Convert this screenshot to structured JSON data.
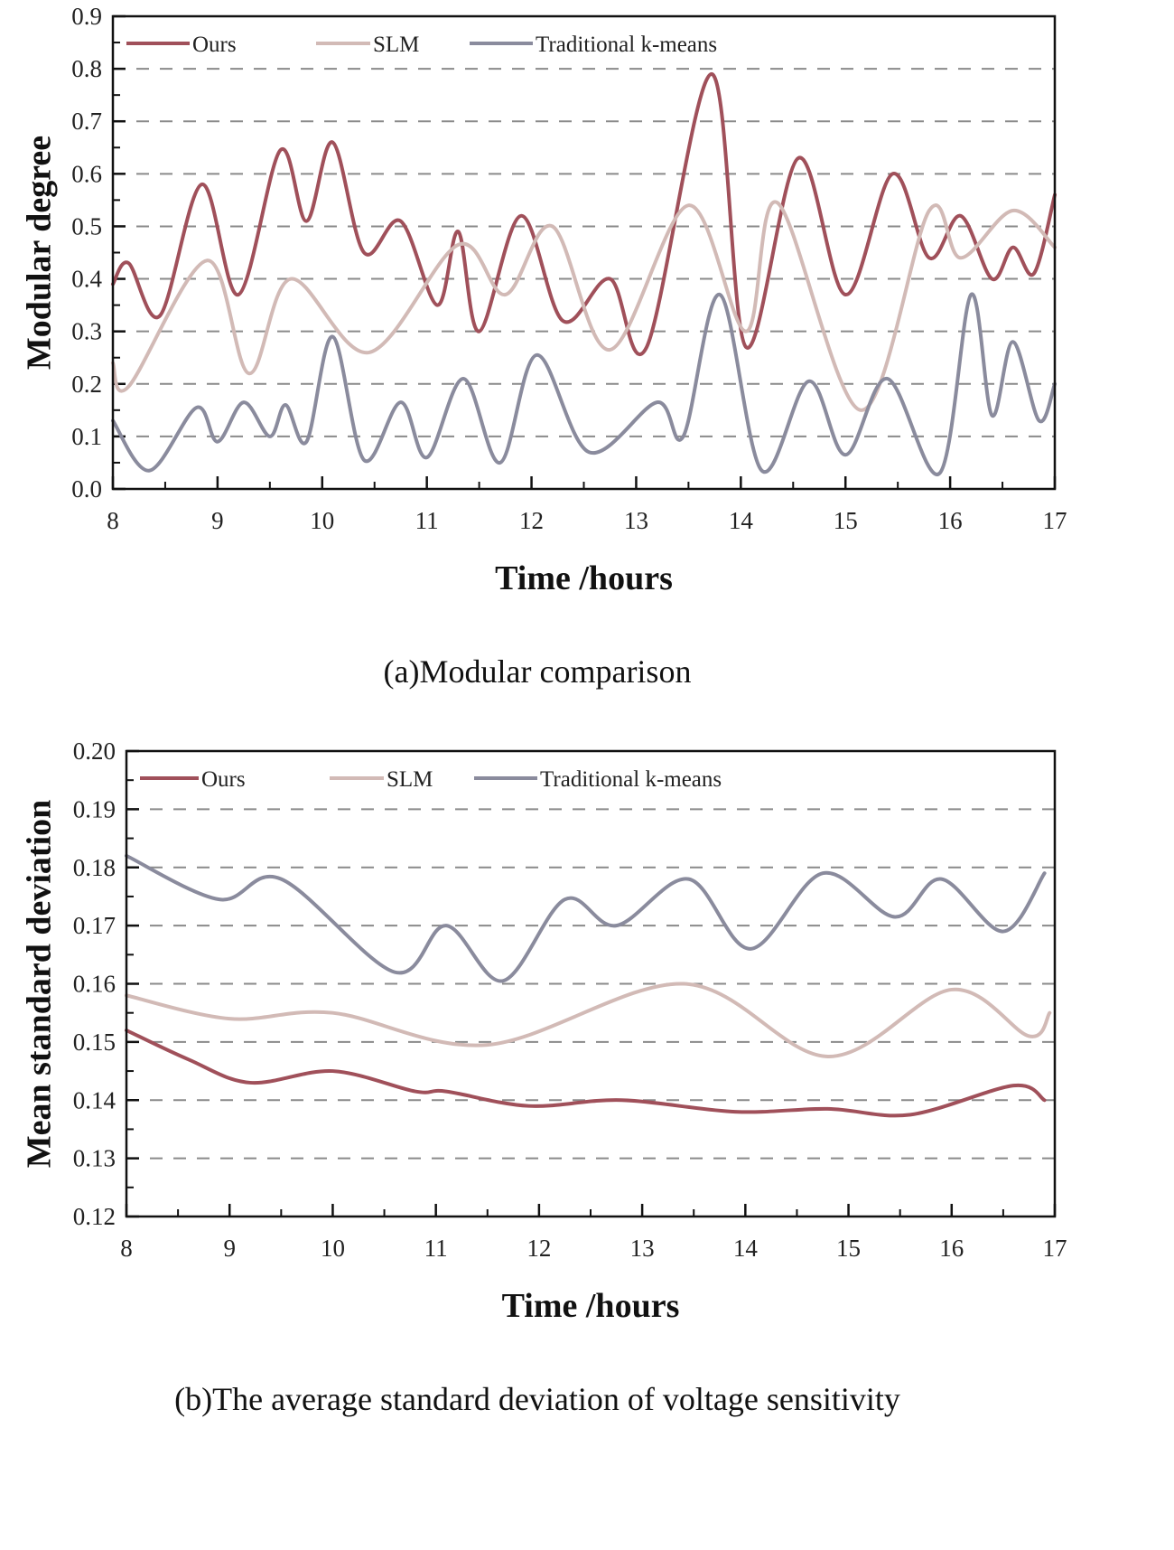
{
  "colors": {
    "ours": "#a0505a",
    "slm": "#d2bab6",
    "kmeans": "#8a8b9d"
  },
  "chart_data": [
    {
      "type": "line",
      "caption": "(a)Modular comparison",
      "xlabel": "Time /hours",
      "ylabel": "Modular degree",
      "xlim": [
        8,
        17
      ],
      "ylim": [
        0,
        0.9
      ],
      "xticks": [
        8,
        9,
        10,
        11,
        12,
        13,
        14,
        15,
        16,
        17
      ],
      "yticks": [
        "0.0",
        "0.1",
        "0.2",
        "0.3",
        "0.4",
        "0.5",
        "0.6",
        "0.7",
        "0.8",
        "0.9"
      ],
      "grid": "horizontal dashed",
      "legend": "top-left",
      "series": [
        {
          "name": "Ours",
          "color_key": "ours",
          "x": [
            8.0,
            8.15,
            8.45,
            8.85,
            9.2,
            9.6,
            9.85,
            10.1,
            10.4,
            10.75,
            11.1,
            11.3,
            11.5,
            11.9,
            12.3,
            12.75,
            13.1,
            13.72,
            14.05,
            14.55,
            15.0,
            15.45,
            15.8,
            16.1,
            16.4,
            16.6,
            16.8,
            17.0
          ],
          "y": [
            0.39,
            0.43,
            0.33,
            0.58,
            0.37,
            0.645,
            0.51,
            0.66,
            0.45,
            0.51,
            0.35,
            0.49,
            0.3,
            0.52,
            0.32,
            0.4,
            0.27,
            0.79,
            0.27,
            0.63,
            0.37,
            0.6,
            0.44,
            0.52,
            0.4,
            0.46,
            0.41,
            0.56
          ]
        },
        {
          "name": "SLM",
          "color_key": "slm",
          "x": [
            8.0,
            8.15,
            8.9,
            9.3,
            9.7,
            10.45,
            11.3,
            11.75,
            12.2,
            12.75,
            13.5,
            14.05,
            14.35,
            15.15,
            15.8,
            16.1,
            16.6,
            17.0
          ],
          "y": [
            0.24,
            0.195,
            0.435,
            0.22,
            0.4,
            0.26,
            0.465,
            0.37,
            0.5,
            0.265,
            0.54,
            0.3,
            0.545,
            0.15,
            0.53,
            0.44,
            0.53,
            0.46
          ]
        },
        {
          "name": "Traditional k-means",
          "color_key": "kmeans",
          "x": [
            8.0,
            8.35,
            8.8,
            9.0,
            9.25,
            9.5,
            9.65,
            9.85,
            10.1,
            10.4,
            10.75,
            11.0,
            11.35,
            11.7,
            12.05,
            12.55,
            13.2,
            13.45,
            13.8,
            14.2,
            14.65,
            15.0,
            15.4,
            15.9,
            16.2,
            16.4,
            16.6,
            16.85,
            17.0
          ],
          "y": [
            0.13,
            0.035,
            0.155,
            0.09,
            0.165,
            0.1,
            0.16,
            0.09,
            0.29,
            0.055,
            0.165,
            0.06,
            0.21,
            0.05,
            0.255,
            0.07,
            0.165,
            0.1,
            0.37,
            0.035,
            0.205,
            0.065,
            0.21,
            0.03,
            0.37,
            0.14,
            0.28,
            0.13,
            0.2
          ]
        }
      ]
    },
    {
      "type": "line",
      "caption": "(b)The average standard deviation of voltage sensitivity",
      "xlabel": "Time /hours",
      "ylabel": "Mean standard deviation",
      "xlim": [
        8,
        17
      ],
      "ylim": [
        0.12,
        0.2
      ],
      "xticks": [
        8,
        9,
        10,
        11,
        12,
        13,
        14,
        15,
        16,
        17
      ],
      "yticks": [
        "0.12",
        "0.13",
        "0.14",
        "0.15",
        "0.16",
        "0.17",
        "0.18",
        "0.19",
        "0.20"
      ],
      "grid": "horizontal dashed",
      "legend": "top-left",
      "series": [
        {
          "name": "Ours",
          "color_key": "ours",
          "x": [
            8.0,
            8.6,
            9.2,
            10.0,
            10.8,
            11.1,
            11.9,
            12.8,
            13.9,
            14.8,
            15.6,
            16.6,
            16.9
          ],
          "y": [
            0.152,
            0.147,
            0.143,
            0.145,
            0.1415,
            0.1415,
            0.139,
            0.14,
            0.138,
            0.1385,
            0.1375,
            0.1425,
            0.14
          ]
        },
        {
          "name": "SLM",
          "color_key": "slm",
          "x": [
            8.0,
            9.0,
            10.0,
            11.5,
            13.4,
            14.8,
            16.0,
            16.75,
            16.95
          ],
          "y": [
            0.158,
            0.154,
            0.155,
            0.1495,
            0.16,
            0.1475,
            0.159,
            0.151,
            0.155
          ]
        },
        {
          "name": "Traditional k-means",
          "color_key": "kmeans",
          "x": [
            8.0,
            8.9,
            9.5,
            10.6,
            11.1,
            11.65,
            12.25,
            12.75,
            13.45,
            14.05,
            14.75,
            15.45,
            15.9,
            16.5,
            16.9
          ],
          "y": [
            0.182,
            0.1745,
            0.178,
            0.162,
            0.17,
            0.1605,
            0.1745,
            0.17,
            0.178,
            0.166,
            0.179,
            0.1715,
            0.178,
            0.169,
            0.179
          ]
        }
      ]
    }
  ]
}
